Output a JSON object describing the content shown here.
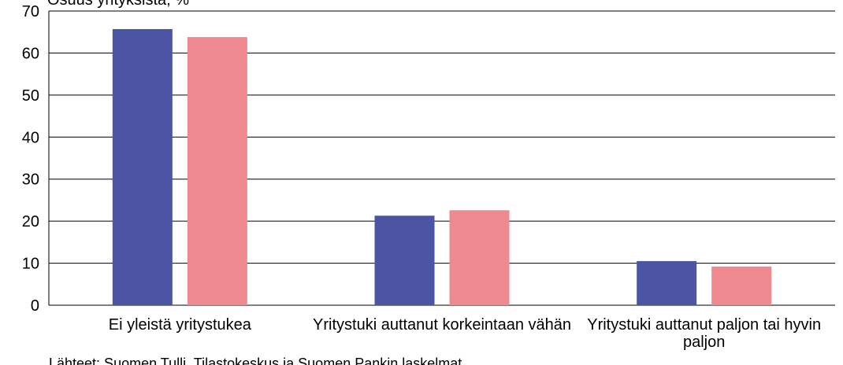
{
  "chart_data": {
    "type": "bar",
    "y_label": "Osuus yrityksistä, %",
    "source": "Lähteet: Suomen Tulli, Tilastokeskus ja Suomen Pankin laskelmat",
    "categories": [
      "Ei yleistä yritystukea",
      "Yritystuki auttanut korkeintaan vähän",
      "Yritystuki auttanut paljon tai hyvin paljon"
    ],
    "series": [
      {
        "color": "#4b55a3",
        "values": [
          65.7,
          21.3,
          10.5
        ]
      },
      {
        "color": "#ef8990",
        "values": [
          63.8,
          22.6,
          9.2
        ]
      }
    ],
    "ylim": [
      0,
      70
    ],
    "yticks": [
      0,
      10,
      20,
      30,
      40,
      50,
      60,
      70
    ],
    "grid": true
  }
}
